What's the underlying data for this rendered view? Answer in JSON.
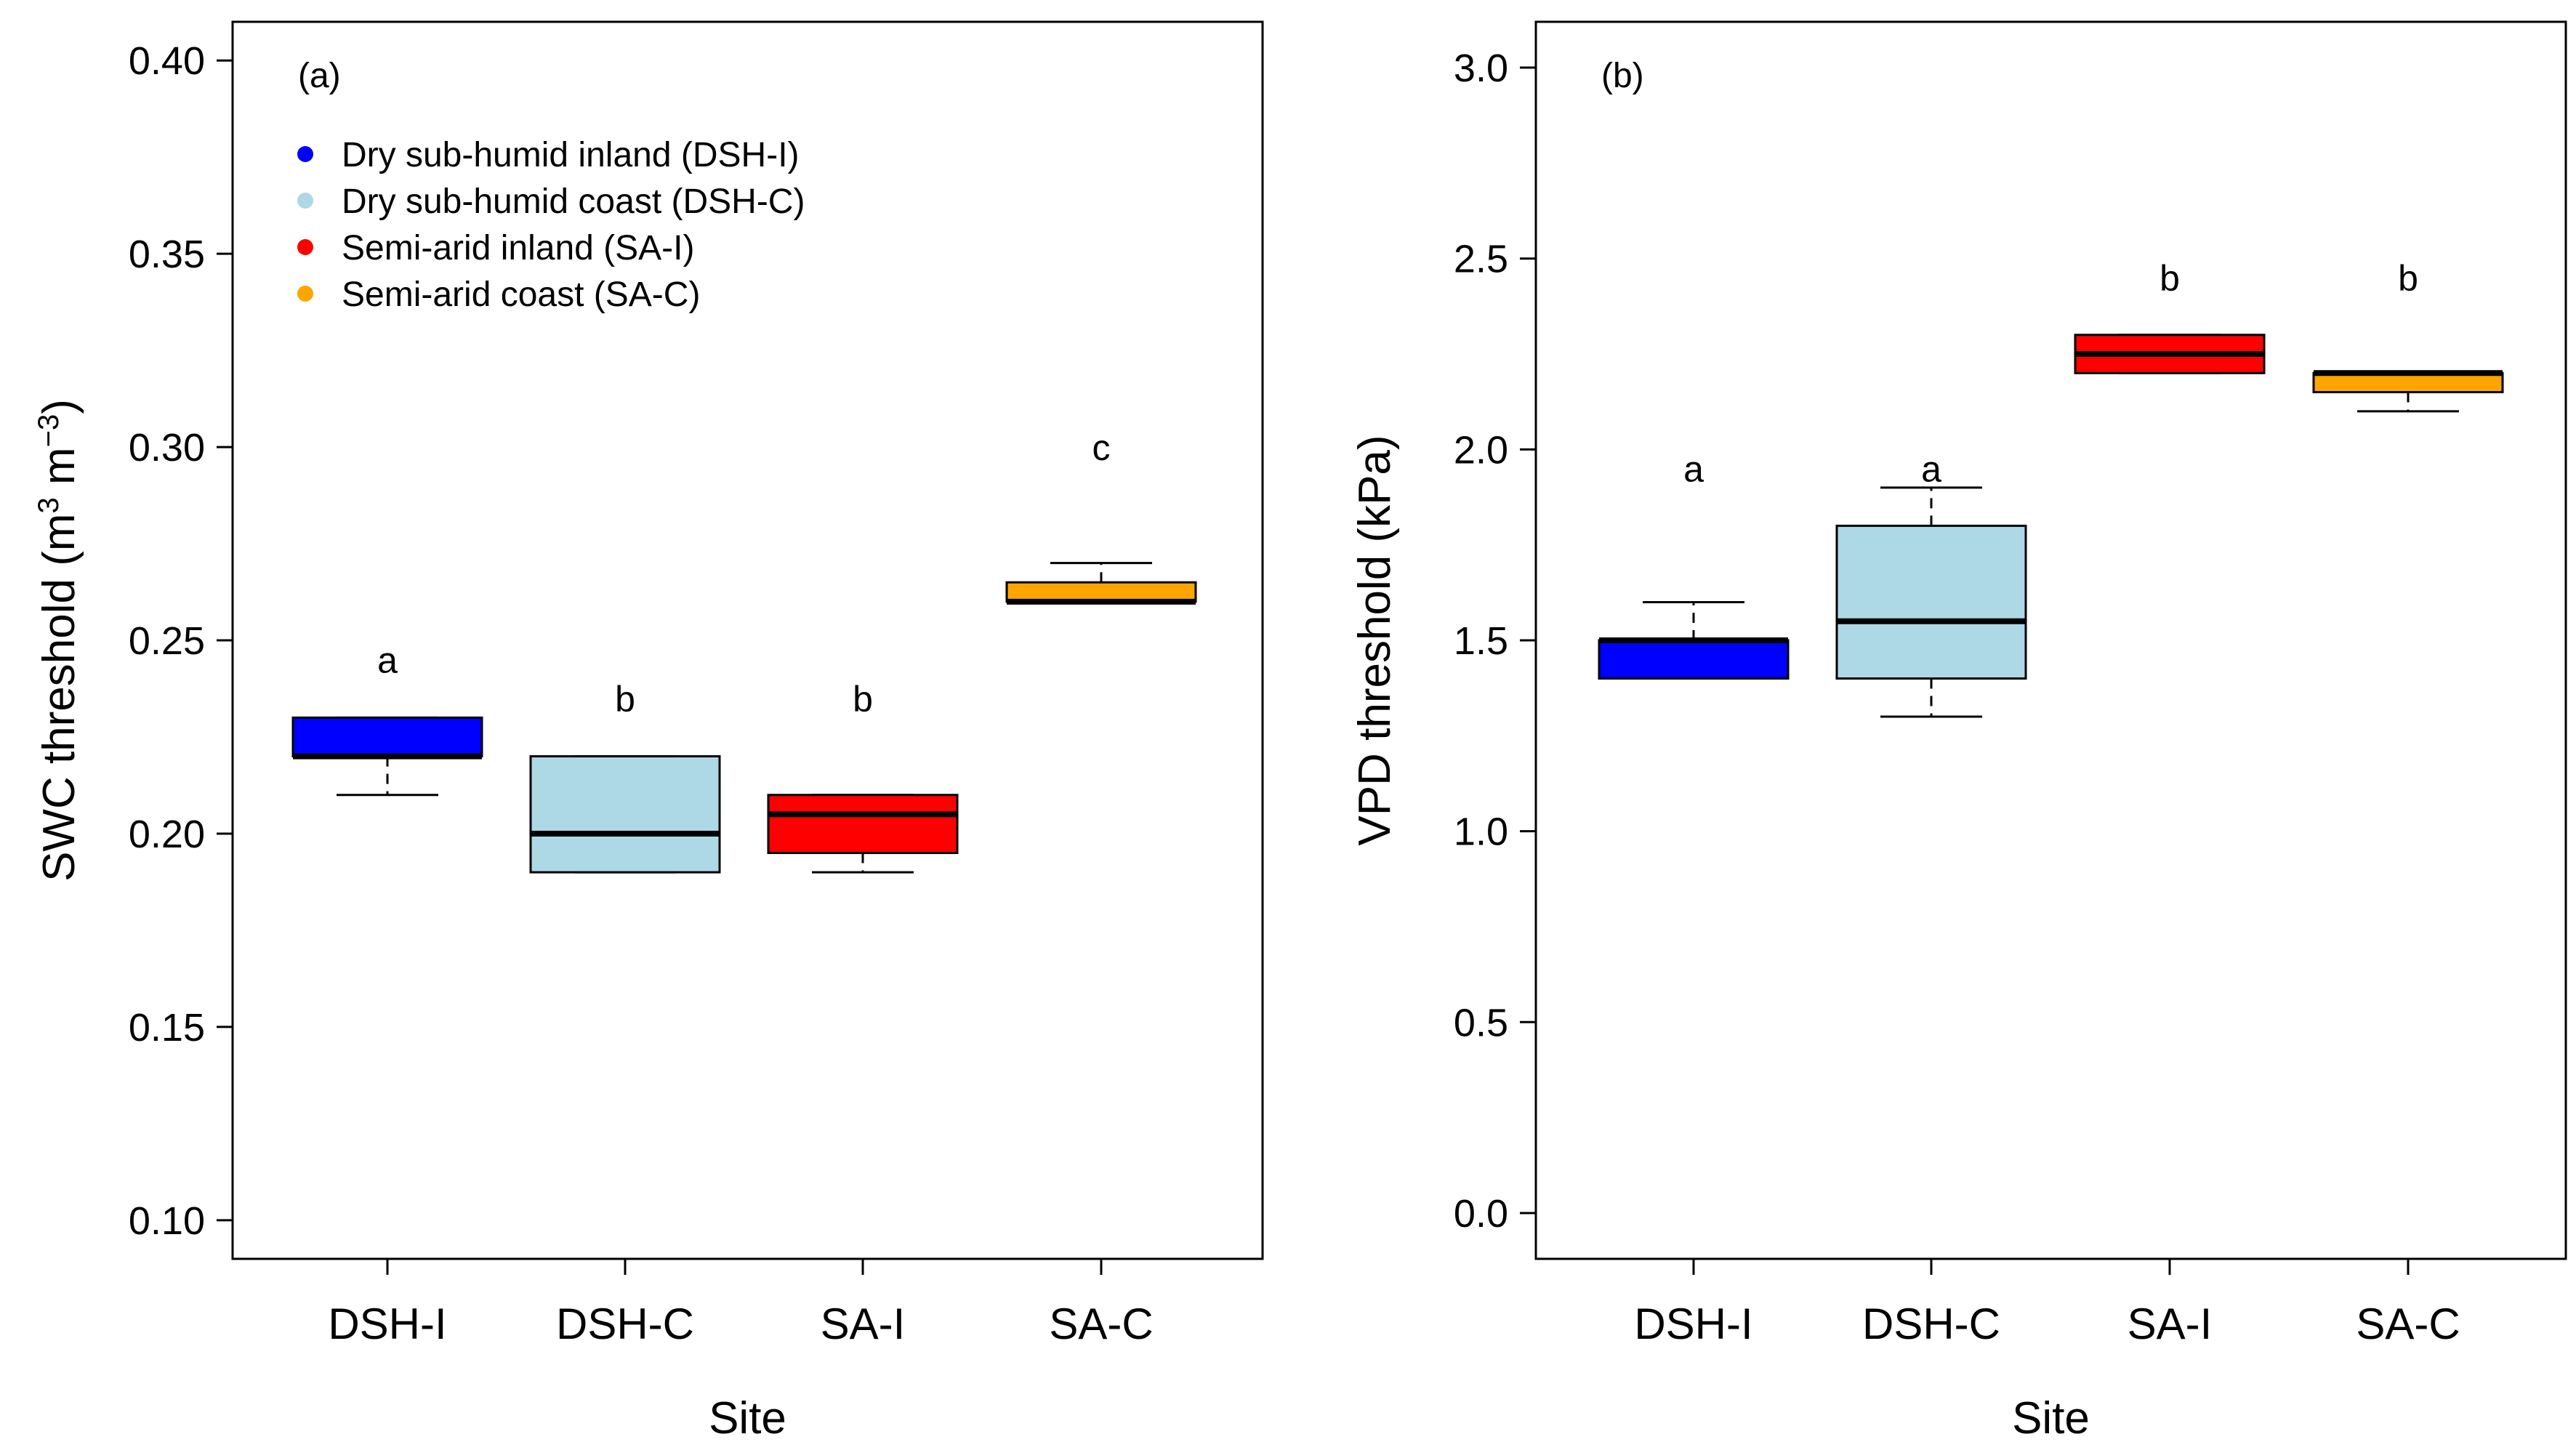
{
  "chart_data": [
    {
      "type": "box",
      "panel_label": "(a)",
      "title": "",
      "xlabel": "Site",
      "ylabel_main": "SWC threshold (m",
      "ylabel_sup1": "3",
      "ylabel_mid": " m",
      "ylabel_sup2": "−3",
      "ylabel_end": ")",
      "ylim": [
        0.09,
        0.41
      ],
      "yticks": [
        0.1,
        0.15,
        0.2,
        0.25,
        0.3,
        0.35,
        0.4
      ],
      "ytick_labels": [
        "0.10",
        "0.15",
        "0.20",
        "0.25",
        "0.30",
        "0.35",
        "0.40"
      ],
      "categories": [
        "DSH-I",
        "DSH-C",
        "SA-I",
        "SA-C"
      ],
      "boxes": [
        {
          "category": "DSH-I",
          "whisker_low": 0.21,
          "q1": 0.22,
          "median": 0.22,
          "q3": 0.23,
          "whisker_high": 0.23,
          "color": "#0000FF",
          "letter": "a"
        },
        {
          "category": "DSH-C",
          "whisker_low": 0.19,
          "q1": 0.19,
          "median": 0.2,
          "q3": 0.22,
          "whisker_high": 0.22,
          "color": "#ADD8E6",
          "letter": "b"
        },
        {
          "category": "SA-I",
          "whisker_low": 0.19,
          "q1": 0.195,
          "median": 0.205,
          "q3": 0.21,
          "whisker_high": 0.21,
          "color": "#FF0000",
          "letter": "b"
        },
        {
          "category": "SA-C",
          "whisker_low": 0.26,
          "q1": 0.26,
          "median": 0.26,
          "q3": 0.265,
          "whisker_high": 0.27,
          "color": "#FFA500",
          "letter": "c"
        }
      ],
      "letter_values": [
        0.245,
        0.235,
        0.235,
        0.3
      ],
      "legend": {
        "position": "top-left",
        "entries": [
          {
            "label": "Dry sub-humid inland (DSH-I)",
            "color": "#0000FF"
          },
          {
            "label": "Dry sub-humid coast (DSH-C)",
            "color": "#ADD8E6"
          },
          {
            "label": "Semi-arid inland (SA-I)",
            "color": "#FF0000"
          },
          {
            "label": "Semi-arid coast (SA-C)",
            "color": "#FFA500"
          }
        ]
      }
    },
    {
      "type": "box",
      "panel_label": "(b)",
      "title": "",
      "xlabel": "Site",
      "ylabel": "VPD threshold (kPa)",
      "ylim": [
        -0.12,
        3.12
      ],
      "yticks": [
        0.0,
        0.5,
        1.0,
        1.5,
        2.0,
        2.5,
        3.0
      ],
      "ytick_labels": [
        "0.0",
        "0.5",
        "1.0",
        "1.5",
        "2.0",
        "2.5",
        "3.0"
      ],
      "categories": [
        "DSH-I",
        "DSH-C",
        "SA-I",
        "SA-C"
      ],
      "boxes": [
        {
          "category": "DSH-I",
          "whisker_low": 1.4,
          "q1": 1.4,
          "median": 1.5,
          "q3": 1.5,
          "whisker_high": 1.6,
          "color": "#0000FF",
          "letter": "a"
        },
        {
          "category": "DSH-C",
          "whisker_low": 1.3,
          "q1": 1.4,
          "median": 1.55,
          "q3": 1.8,
          "whisker_high": 1.9,
          "color": "#ADD8E6",
          "letter": "a"
        },
        {
          "category": "SA-I",
          "whisker_low": 2.2,
          "q1": 2.2,
          "median": 2.25,
          "q3": 2.3,
          "whisker_high": 2.3,
          "color": "#FF0000",
          "letter": "b"
        },
        {
          "category": "SA-C",
          "whisker_low": 2.1,
          "q1": 2.15,
          "median": 2.2,
          "q3": 2.2,
          "whisker_high": 2.2,
          "color": "#FFA500",
          "letter": "b"
        }
      ],
      "letter_values": [
        1.95,
        1.95,
        2.45,
        2.45
      ]
    }
  ]
}
